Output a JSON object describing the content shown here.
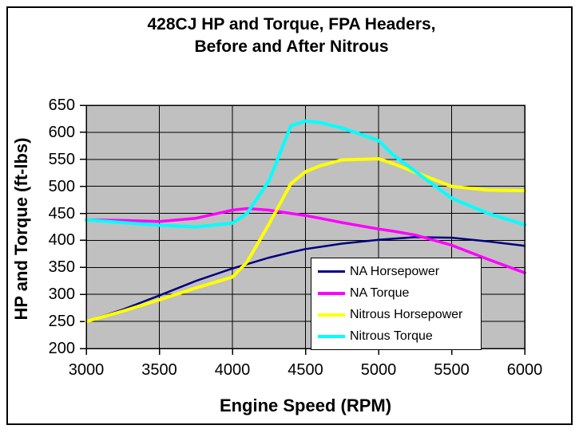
{
  "chart_data": {
    "type": "line",
    "title_line1": "428CJ HP and Torque, FPA Headers,",
    "title_line2": "Before and After Nitrous",
    "xlabel": "Engine Speed (RPM)",
    "ylabel": "HP and Torque (ft-lbs)",
    "xlim": [
      3000,
      6000
    ],
    "ylim": [
      200,
      650
    ],
    "x_ticks": [
      3000,
      3500,
      4000,
      4500,
      5000,
      5500,
      6000
    ],
    "y_ticks": [
      200,
      250,
      300,
      350,
      400,
      450,
      500,
      550,
      600,
      650
    ],
    "grid": true,
    "plot_bg_color": "#c0c0c0",
    "gridline_color": "#000000",
    "legend_position": "inside-bottom-right",
    "x": [
      3000,
      3250,
      3500,
      3750,
      4000,
      4100,
      4250,
      4400,
      4500,
      4600,
      4750,
      5000,
      5100,
      5250,
      5500,
      5750,
      6000
    ],
    "series": [
      {
        "name": "NA Horsepower",
        "color": "#000080",
        "stroke_width": 2.5,
        "values": [
          250,
          272,
          298,
          325,
          348,
          356,
          368,
          378,
          384,
          388,
          394,
          401,
          403,
          406,
          405,
          398,
          390
        ]
      },
      {
        "name": "NA Torque",
        "color": "#ff00ff",
        "stroke_width": 3.5,
        "values": [
          438,
          437,
          435,
          441,
          456,
          459,
          456,
          450,
          446,
          441,
          433,
          421,
          417,
          410,
          391,
          365,
          340
        ]
      },
      {
        "name": "Nitrous Horsepower",
        "color": "#ffff00",
        "stroke_width": 4,
        "values": [
          250,
          269,
          290,
          312,
          332,
          360,
          430,
          505,
          527,
          538,
          549,
          551,
          542,
          526,
          500,
          493,
          492
        ]
      },
      {
        "name": "Nitrous Torque",
        "color": "#00ffff",
        "stroke_width": 4,
        "values": [
          438,
          433,
          428,
          425,
          432,
          450,
          510,
          612,
          621,
          618,
          608,
          585,
          558,
          528,
          478,
          450,
          429
        ]
      }
    ]
  }
}
